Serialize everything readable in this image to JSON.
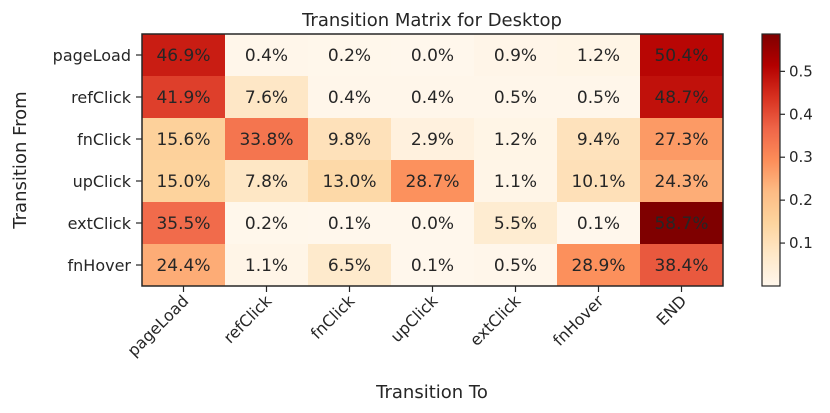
{
  "chart_data": {
    "type": "heatmap",
    "title": "Transition Matrix for Desktop",
    "xlabel": "Transition To",
    "ylabel": "Transition From",
    "x_categories": [
      "pageLoad",
      "refClick",
      "fnClick",
      "upClick",
      "extClick",
      "fnHover",
      "END"
    ],
    "y_categories": [
      "pageLoad",
      "refClick",
      "fnClick",
      "upClick",
      "extClick",
      "fnHover"
    ],
    "values": [
      [
        46.9,
        0.4,
        0.2,
        0.0,
        0.9,
        1.2,
        50.4
      ],
      [
        41.9,
        7.6,
        0.4,
        0.4,
        0.5,
        0.5,
        48.7
      ],
      [
        15.6,
        33.8,
        9.8,
        2.9,
        1.2,
        9.4,
        27.3
      ],
      [
        15.0,
        7.8,
        13.0,
        28.7,
        1.1,
        10.1,
        24.3
      ],
      [
        35.5,
        0.2,
        0.1,
        0.0,
        5.5,
        0.1,
        58.7
      ],
      [
        24.4,
        1.1,
        6.5,
        0.1,
        0.5,
        28.9,
        38.4
      ]
    ],
    "value_format": "percent-1dp",
    "colormap": "OrRd",
    "colorbar": {
      "range": [
        0.0,
        0.587
      ],
      "ticks": [
        0.1,
        0.2,
        0.3,
        0.4,
        0.5
      ],
      "tick_labels": [
        "0.1",
        "0.2",
        "0.3",
        "0.4",
        "0.5"
      ]
    },
    "grid": false,
    "legend": "colorbar-right"
  }
}
